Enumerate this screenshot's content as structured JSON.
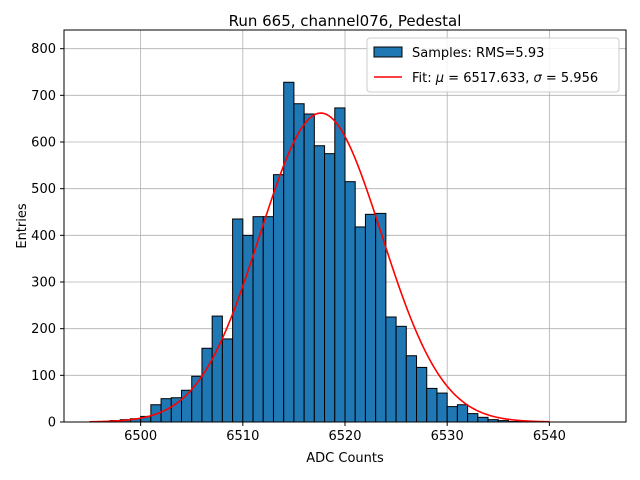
{
  "chart_data": {
    "type": "bar",
    "title": "Run 665, channel076, Pedestal",
    "xlabel": "ADC Counts",
    "ylabel": "Entries",
    "xlim": [
      6492.5,
      6547.5
    ],
    "ylim": [
      0,
      840
    ],
    "xticks": [
      6500,
      6510,
      6520,
      6530,
      6540
    ],
    "yticks": [
      0,
      100,
      200,
      300,
      400,
      500,
      600,
      700,
      800
    ],
    "grid": true,
    "legend_position": "top-right",
    "bin_width": 1,
    "histogram": {
      "name": "Samples: RMS=5.93",
      "bin_start": 6495,
      "counts": [
        0,
        1,
        3,
        5,
        7,
        12,
        37,
        50,
        52,
        68,
        98,
        158,
        227,
        178,
        435,
        400,
        440,
        440,
        530,
        728,
        682,
        660,
        592,
        575,
        673,
        515,
        418,
        445,
        447,
        225,
        205,
        142,
        117,
        72,
        62,
        33,
        37,
        18,
        10,
        5,
        3,
        1,
        1,
        0,
        0,
        0,
        0,
        0,
        0,
        0
      ],
      "color": "#1f77b4",
      "edgecolor": "#000000"
    },
    "fit": {
      "name_prefix": "Fit: ",
      "mu_symbol": "μ",
      "mu_text": " = 6517.633, ",
      "sigma_symbol": "σ",
      "sigma_text": " = 5.956",
      "type": "gaussian",
      "mu": 6517.633,
      "sigma": 5.956,
      "amplitude": 662,
      "x_range": [
        6495,
        6540
      ],
      "color": "#ff0000"
    }
  }
}
